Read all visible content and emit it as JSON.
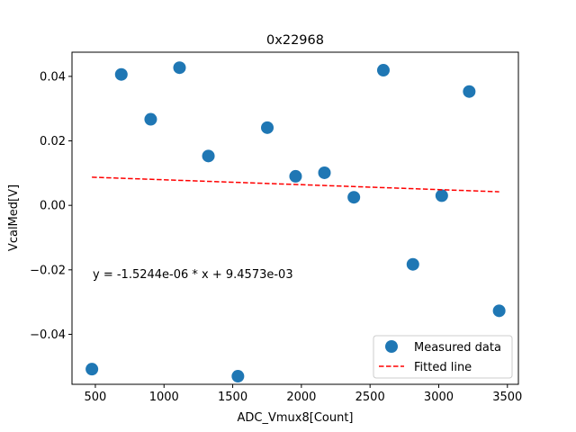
{
  "chart_data": {
    "type": "scatter",
    "title": "0x22968",
    "xlabel": "ADC_Vmux8[Count]",
    "ylabel": "VcalMed[V]",
    "xlim": [
      330,
      3580
    ],
    "ylim": [
      -0.0555,
      0.0475
    ],
    "xticks": [
      500,
      1000,
      1500,
      2000,
      2500,
      3000,
      3500
    ],
    "xtick_labels": [
      "500",
      "1000",
      "1500",
      "2000",
      "2500",
      "3000",
      "3500"
    ],
    "yticks": [
      -0.04,
      -0.02,
      0.0,
      0.02,
      0.04
    ],
    "ytick_labels": [
      "−0.04",
      "−0.02",
      "0.00",
      "0.02",
      "0.04"
    ],
    "grid": false,
    "legend_position": "lower-right",
    "series": [
      {
        "name": "Measured data",
        "kind": "scatter",
        "color": "#1f77b4",
        "x": [
          475,
          689,
          903,
          1113,
          1323,
          1538,
          1752,
          1958,
          2168,
          2382,
          2597,
          2812,
          3022,
          3222,
          3440
        ],
        "y": [
          -0.0508,
          0.0406,
          0.0267,
          0.0427,
          0.0153,
          -0.053,
          0.0241,
          0.009,
          0.0101,
          0.0025,
          0.0419,
          -0.0183,
          0.003,
          0.0353,
          -0.0327
        ]
      },
      {
        "name": "Fitted line",
        "kind": "line",
        "style": "dashed",
        "color": "#ff0000",
        "x": [
          475,
          3440
        ],
        "y": [
          0.008733,
          0.004213
        ]
      }
    ],
    "annotation": "y = -1.5244e-06 * x + 9.4573e-03"
  }
}
